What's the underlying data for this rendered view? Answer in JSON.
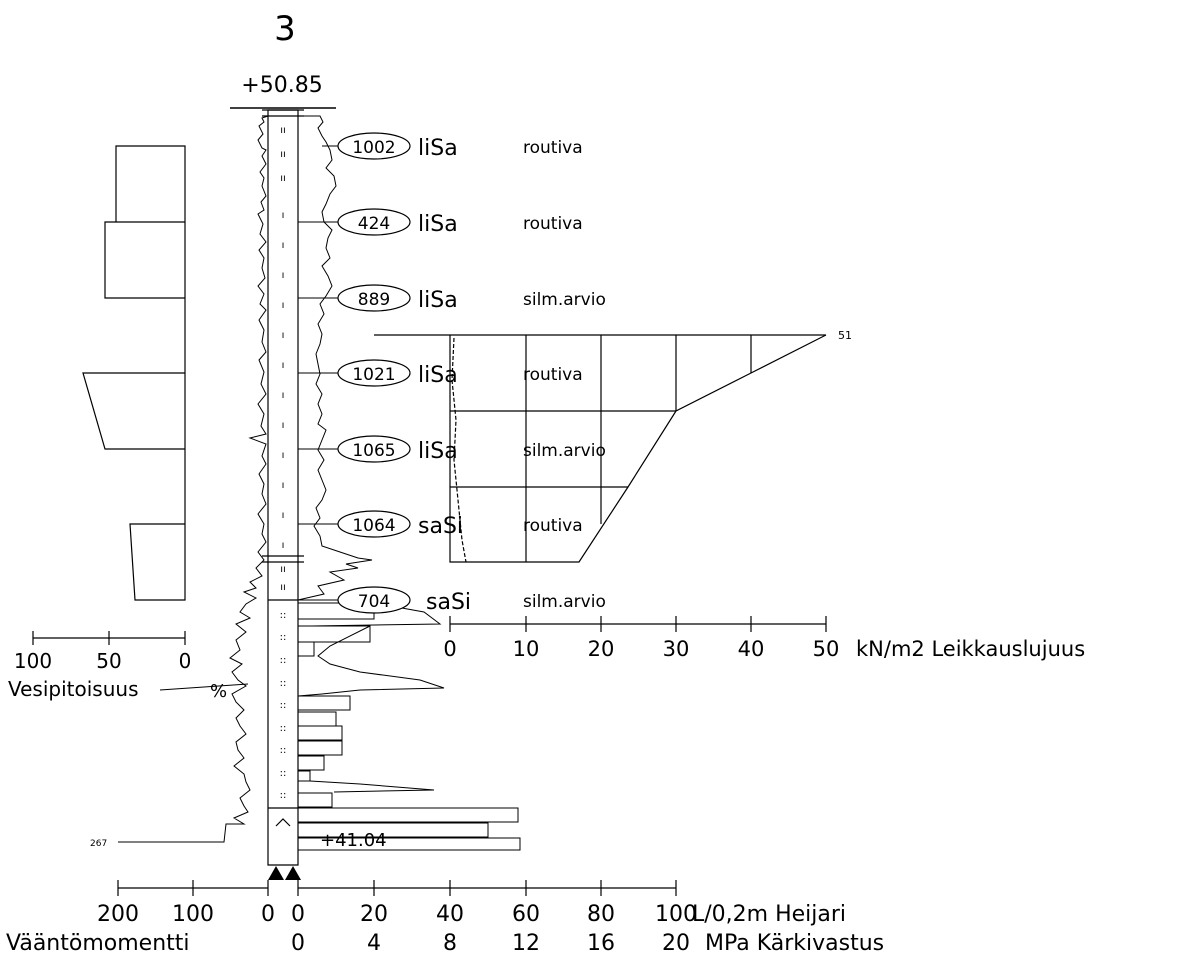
{
  "header": {
    "point_number": "3",
    "top_elevation": "+50.85",
    "bottom_elevation": "+41.04"
  },
  "samples": [
    {
      "id": "1002",
      "soil": "liSa",
      "note": "routiva"
    },
    {
      "id": "424",
      "soil": "liSa",
      "note": "routiva"
    },
    {
      "id": "889",
      "soil": "liSa",
      "note": "silm.arvio"
    },
    {
      "id": "1021",
      "soil": "liSa",
      "note": "routiva"
    },
    {
      "id": "1065",
      "soil": "liSa",
      "note": "silm.arvio"
    },
    {
      "id": "1064",
      "soil": "saSi",
      "note": "routiva"
    },
    {
      "id": "704",
      "soil": "saSi",
      "note": "silm.arvio"
    }
  ],
  "side_labels": {
    "left_marker": "267",
    "shear_marker": "51"
  },
  "water_axis": {
    "ticks": [
      "100",
      "50",
      "0"
    ],
    "label": "Vesipitoisuus",
    "unit": "%"
  },
  "shear_axis": {
    "ticks": [
      "0",
      "10",
      "20",
      "30",
      "40",
      "50"
    ],
    "label": "kN/m2 Leikkauslujuus"
  },
  "bottom_axis": {
    "left_ticks": [
      "200",
      "100",
      "0"
    ],
    "right_ticks": [
      "0",
      "20",
      "40",
      "60",
      "80",
      "100"
    ],
    "right_label": "L/0,2m Heijari",
    "left_label": "Vääntömomentti",
    "cone_ticks": [
      "0",
      "4",
      "8",
      "12",
      "16",
      "20"
    ],
    "cone_label": "MPa Kärkivastus"
  },
  "colors": {
    "ink": "#000000",
    "paper": "#ffffff"
  }
}
